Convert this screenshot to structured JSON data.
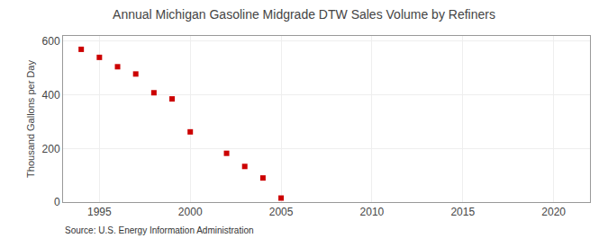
{
  "chart_data": {
    "type": "scatter",
    "title": "Annual Michigan Gasoline Midgrade DTW Sales Volume by Refiners",
    "ylabel": "Thousand Gallons per Day",
    "annotations": [
      "Source: U.S. Energy Information Administration"
    ],
    "x": [
      1994,
      1995,
      1996,
      1997,
      1998,
      1999,
      2000,
      2002,
      2003,
      2004,
      2005
    ],
    "values": [
      570,
      540,
      505,
      478,
      408,
      385,
      262,
      182,
      133,
      90,
      15
    ],
    "color": "#cc0000",
    "marker": "square",
    "xlim": [
      1993,
      2022
    ],
    "xticks": [
      1995,
      2000,
      2005,
      2010,
      2015,
      2020
    ],
    "ylim": [
      0,
      620
    ],
    "yticks": [
      0,
      200,
      400,
      600
    ],
    "grid": true
  }
}
